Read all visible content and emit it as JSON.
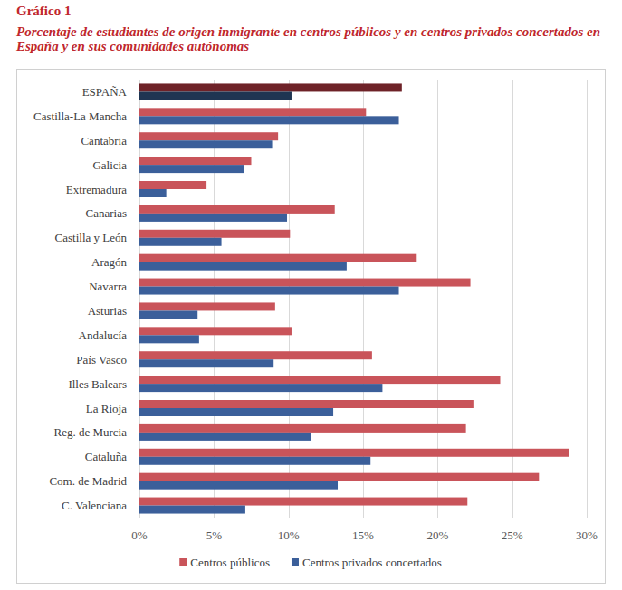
{
  "chart_data": {
    "type": "bar",
    "orientation": "horizontal",
    "title": "Gráfico 1",
    "subtitle": "Porcentaje de estudiantes de origen inmigrante en centros públicos y en centros privados concertados en España y en sus comunidades autónomas",
    "categories": [
      "ESPAÑA",
      "Castilla-La Mancha",
      "Cantabria",
      "Galicia",
      "Extremadura",
      "Canarias",
      "Castilla y León",
      "Aragón",
      "Navarra",
      "Asturias",
      "Andalucía",
      "País Vasco",
      "Illes Balears",
      "La Rioja",
      "Reg. de Murcia",
      "Cataluña",
      "Com. de Madrid",
      "C. Valenciana"
    ],
    "series": [
      {
        "name": "Centros públicos",
        "color": "#c9545a",
        "colors": [
          "#6e2228",
          "#c9545a",
          "#c9545a",
          "#c9545a",
          "#c9545a",
          "#c9545a",
          "#c9545a",
          "#c9545a",
          "#c9545a",
          "#c9545a",
          "#c9545a",
          "#c9545a",
          "#c9545a",
          "#c9545a",
          "#c9545a",
          "#c9545a",
          "#c9545a",
          "#c9545a"
        ],
        "values": [
          17.6,
          15.2,
          9.3,
          7.5,
          4.5,
          13.1,
          10.1,
          18.6,
          22.2,
          9.1,
          10.2,
          15.6,
          24.2,
          22.4,
          21.9,
          28.8,
          26.8,
          22.0
        ]
      },
      {
        "name": "Centros privados concertados",
        "color": "#3b5f9a",
        "colors": [
          "#1f3552",
          "#3b5f9a",
          "#3b5f9a",
          "#3b5f9a",
          "#3b5f9a",
          "#3b5f9a",
          "#3b5f9a",
          "#3b5f9a",
          "#3b5f9a",
          "#3b5f9a",
          "#3b5f9a",
          "#3b5f9a",
          "#3b5f9a",
          "#3b5f9a",
          "#3b5f9a",
          "#3b5f9a",
          "#3b5f9a",
          "#3b5f9a"
        ],
        "values": [
          10.2,
          17.4,
          8.9,
          7.0,
          1.8,
          9.9,
          5.5,
          13.9,
          17.4,
          3.9,
          4.0,
          9.0,
          16.3,
          13.0,
          11.5,
          15.5,
          13.3,
          7.1
        ]
      }
    ],
    "xlim": [
      0,
      30
    ],
    "xticks": [
      {
        "value": 0,
        "label": "0%"
      },
      {
        "value": 5,
        "label": "5%"
      },
      {
        "value": 10,
        "label": "10%"
      },
      {
        "value": 15,
        "label": "15%"
      },
      {
        "value": 20,
        "label": "20%"
      },
      {
        "value": 25,
        "label": "25%"
      },
      {
        "value": 30,
        "label": "30%"
      }
    ],
    "grid": true,
    "legend": "bottom"
  }
}
